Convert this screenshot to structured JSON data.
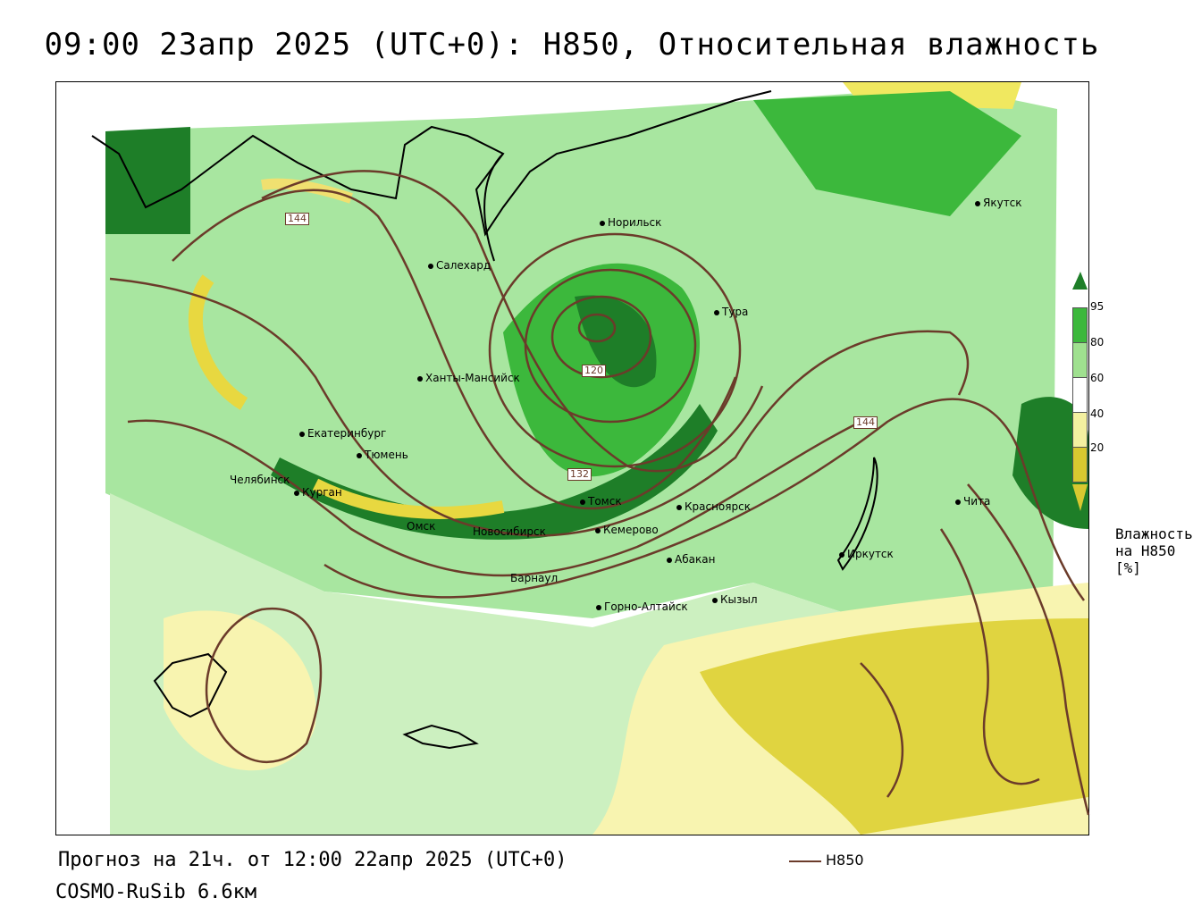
{
  "title": "09:00 23апр 2025 (UTC+0): H850, Относительная влажность",
  "footer": {
    "forecast": "Прогноз на 21ч. от 12:00 22апр 2025 (UTC+0)",
    "model": "COSMO-RuSib 6.6км",
    "line_legend": "H850"
  },
  "legend": {
    "title": "Влажность на H850 [%]",
    "ticks": [
      "95",
      "80",
      "60",
      "40",
      "20"
    ],
    "colors": [
      "#1e7e28",
      "#3cb83c",
      "#9fe08f",
      "#ffffff",
      "#f4f0a0",
      "#d8c830"
    ]
  },
  "contour_labels": [
    "144",
    "120",
    "132",
    "144"
  ],
  "cities": [
    "Норильск",
    "Якутск",
    "Салехард",
    "Тура",
    "Ханты-Мансийск",
    "Екатеринбург",
    "Тюмень",
    "Челябинск",
    "Курган",
    "Омск",
    "Новосибирск",
    "Томск",
    "Кемерово",
    "Красноярск",
    "Барнаул",
    "Абакан",
    "Иркутск",
    "Чита",
    "Горно-Алтайск",
    "Кызыл"
  ],
  "colors": {
    "contour": "#6b3b2a",
    "dark_green": "#1e7e28",
    "green": "#3cb83c",
    "light_green": "#a8e6a0",
    "light_yellow": "#f8f4b0",
    "yellow": "#e0d440"
  }
}
